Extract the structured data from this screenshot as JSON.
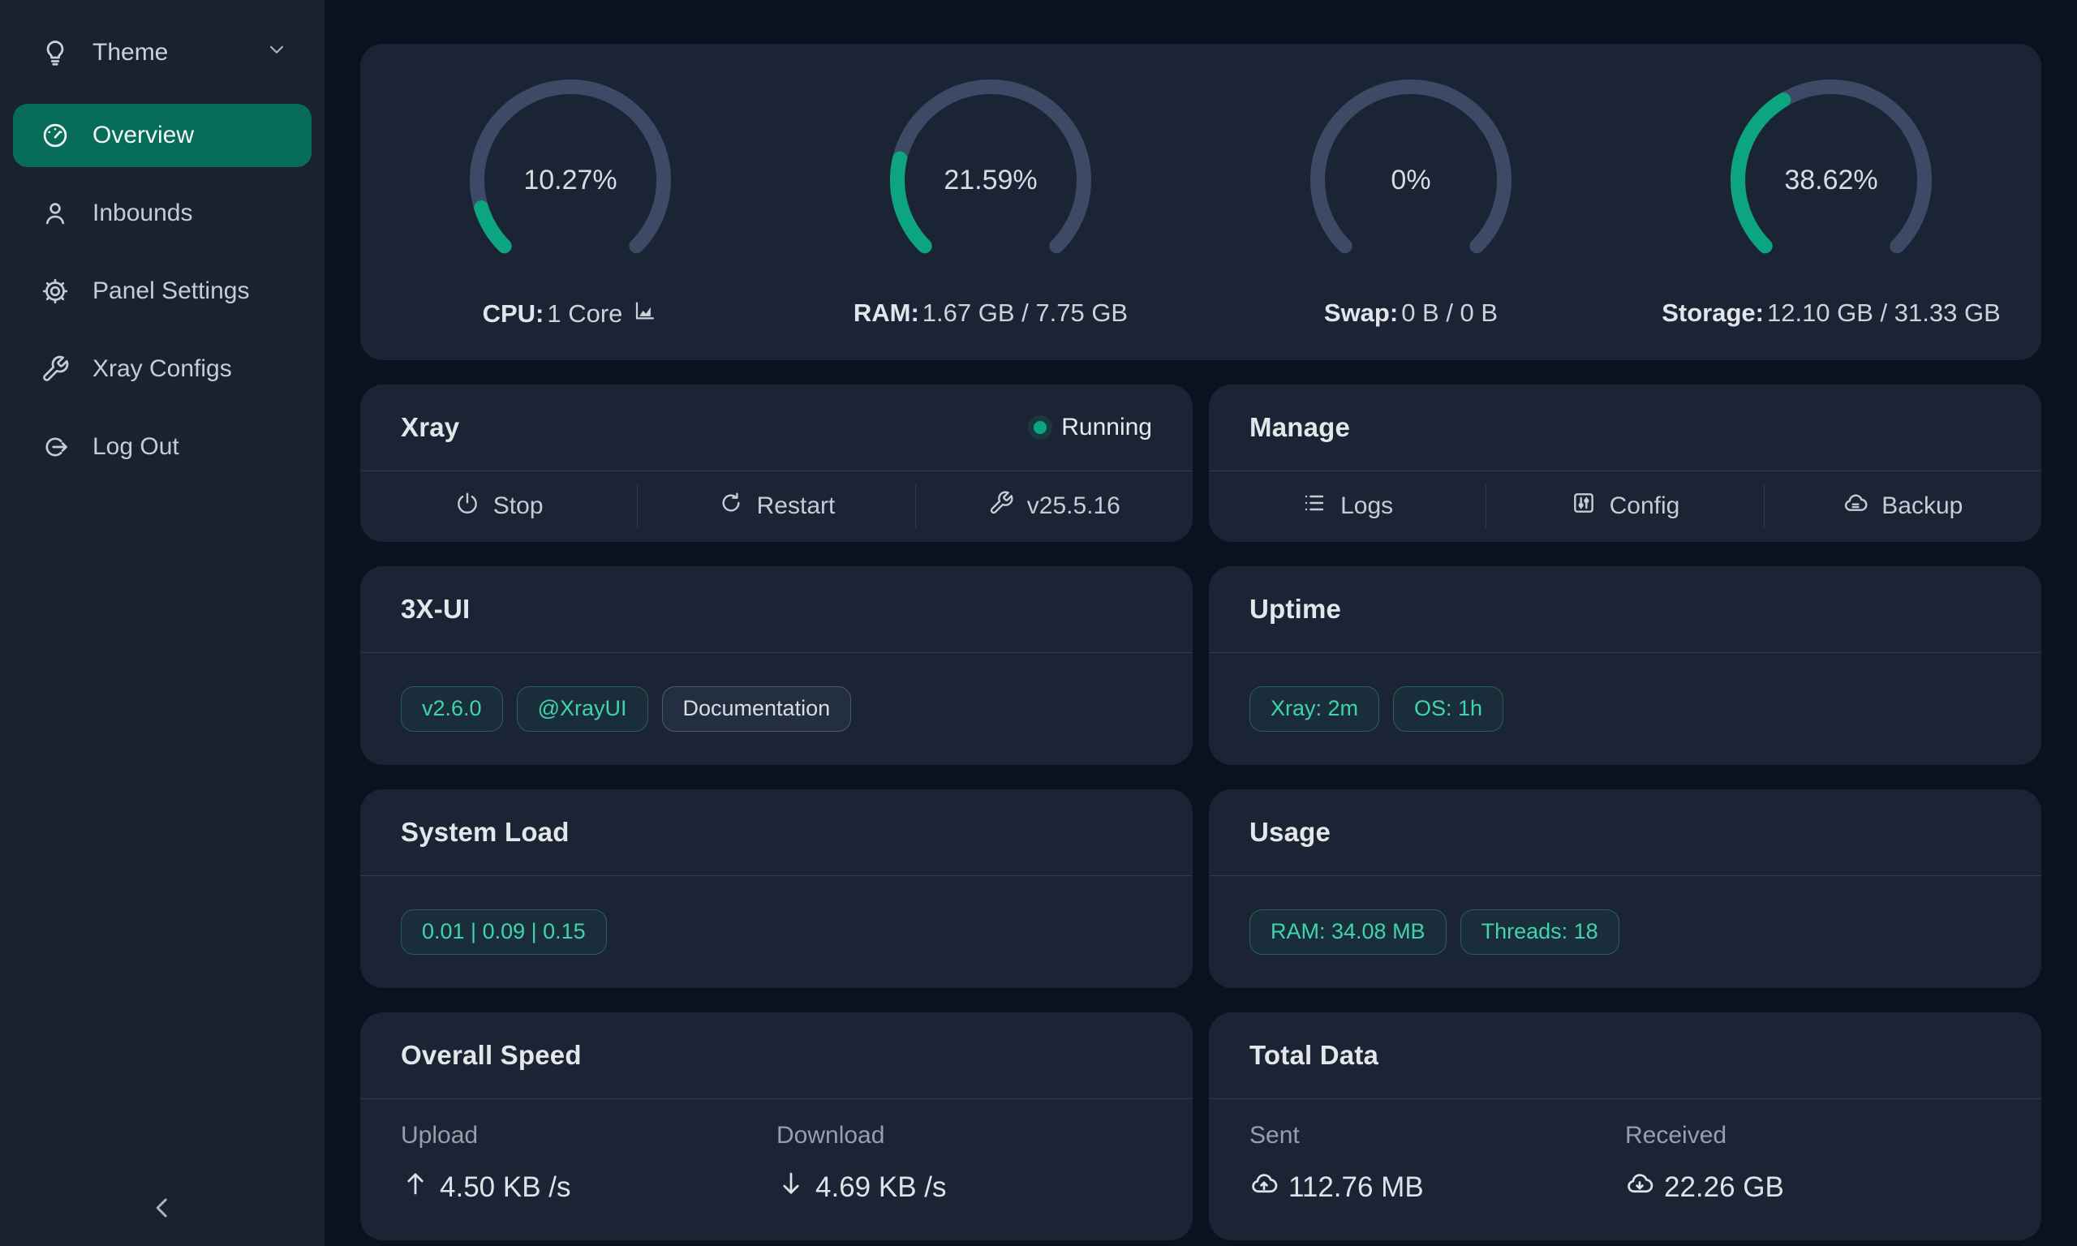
{
  "colors": {
    "page_bg": "#0a111f",
    "sidebar_bg": "#192231",
    "card_bg": "#1b2435",
    "accent_green": "#0ca57f",
    "gauge_track": "#3c4a66",
    "active_item_bg": "#076d5a",
    "tag_green_text": "#3fd4ac"
  },
  "sidebar": {
    "theme": {
      "label": "Theme",
      "icon": "bulb"
    },
    "items": [
      {
        "id": "overview",
        "label": "Overview",
        "icon": "gauge",
        "active": true
      },
      {
        "id": "inbounds",
        "label": "Inbounds",
        "icon": "user",
        "active": false
      },
      {
        "id": "panel-settings",
        "label": "Panel Settings",
        "icon": "gear",
        "active": false
      },
      {
        "id": "xray-configs",
        "label": "Xray Configs",
        "icon": "wrench",
        "active": false
      },
      {
        "id": "logout",
        "label": "Log Out",
        "icon": "logout",
        "active": false
      }
    ]
  },
  "gauges": [
    {
      "percent": 10.27,
      "percent_label": "10.27%",
      "label_bold": "CPU:",
      "label_rest": "1 Core",
      "chart_icon": true
    },
    {
      "percent": 21.59,
      "percent_label": "21.59%",
      "label_bold": "RAM:",
      "label_rest": "1.67 GB / 7.75 GB",
      "chart_icon": false
    },
    {
      "percent": 0,
      "percent_label": "0%",
      "label_bold": "Swap:",
      "label_rest": "0 B / 0 B",
      "chart_icon": false
    },
    {
      "percent": 38.62,
      "percent_label": "38.62%",
      "label_bold": "Storage:",
      "label_rest": "12.10 GB / 31.33 GB",
      "chart_icon": false
    }
  ],
  "xray": {
    "title": "Xray",
    "status": "Running",
    "actions": [
      {
        "label": "Stop",
        "icon": "power"
      },
      {
        "label": "Restart",
        "icon": "restart"
      },
      {
        "label": "v25.5.16",
        "icon": "wrench"
      }
    ]
  },
  "manage": {
    "title": "Manage",
    "actions": [
      {
        "label": "Logs",
        "icon": "list"
      },
      {
        "label": "Config",
        "icon": "sliders"
      },
      {
        "label": "Backup",
        "icon": "cloud-server"
      }
    ]
  },
  "xui": {
    "title": "3X-UI",
    "tags": [
      {
        "label": "v2.6.0",
        "style": "green",
        "link": true
      },
      {
        "label": "@XrayUI",
        "style": "green",
        "link": true
      },
      {
        "label": "Documentation",
        "style": "gray",
        "link": true
      }
    ]
  },
  "uptime": {
    "title": "Uptime",
    "tags": [
      {
        "label": "Xray: 2m",
        "style": "green",
        "link": false
      },
      {
        "label": "OS: 1h",
        "style": "green",
        "link": false
      }
    ]
  },
  "system_load": {
    "title": "System Load",
    "tags": [
      {
        "label": "0.01 | 0.09 | 0.15",
        "style": "green",
        "link": false
      }
    ]
  },
  "usage": {
    "title": "Usage",
    "tags": [
      {
        "label": "RAM: 34.08 MB",
        "style": "green",
        "link": false
      },
      {
        "label": "Threads: 18",
        "style": "green",
        "link": false
      }
    ]
  },
  "overall_speed": {
    "title": "Overall Speed",
    "stats": [
      {
        "label": "Upload",
        "value": "4.50 KB /s",
        "icon": "arrow-up"
      },
      {
        "label": "Download",
        "value": "4.69 KB /s",
        "icon": "arrow-down"
      }
    ]
  },
  "total_data": {
    "title": "Total Data",
    "stats": [
      {
        "label": "Sent",
        "value": "112.76 MB",
        "icon": "cloud-up"
      },
      {
        "label": "Received",
        "value": "22.26 GB",
        "icon": "cloud-down"
      }
    ]
  }
}
